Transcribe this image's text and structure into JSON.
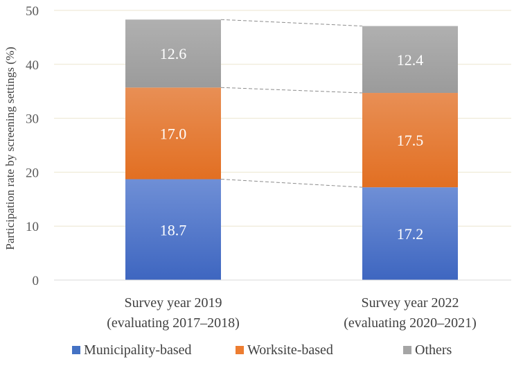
{
  "chart_data": {
    "type": "bar",
    "stacked": true,
    "ylabel": "Participation rate by screening settings (%)",
    "ylim": [
      0,
      50
    ],
    "yticks": [
      0,
      10,
      20,
      30,
      40,
      50
    ],
    "grid": true,
    "legend_position": "bottom",
    "categories": [
      {
        "line1": "Survey year 2019",
        "line2": "(evaluating 2017–2018)"
      },
      {
        "line1": "Survey year 2022",
        "line2": "(evaluating 2020–2021)"
      }
    ],
    "series": [
      {
        "name": "Municipality-based",
        "color": "#4472C4",
        "values": [
          18.7,
          17.2
        ],
        "labels": [
          "18.7",
          "17.2"
        ]
      },
      {
        "name": "Worksite-based",
        "color": "#ED7D31",
        "values": [
          17.0,
          17.5
        ],
        "labels": [
          "17.0",
          "17.5"
        ]
      },
      {
        "name": "Others",
        "color": "#A5A5A5",
        "values": [
          12.6,
          12.4
        ],
        "labels": [
          "12.6",
          "12.4"
        ]
      }
    ]
  }
}
